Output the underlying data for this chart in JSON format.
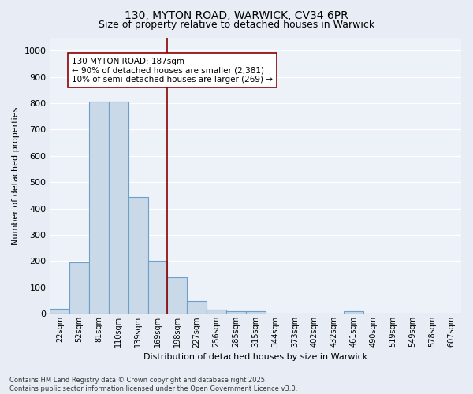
{
  "title1": "130, MYTON ROAD, WARWICK, CV34 6PR",
  "title2": "Size of property relative to detached houses in Warwick",
  "xlabel": "Distribution of detached houses by size in Warwick",
  "ylabel": "Number of detached properties",
  "categories": [
    "22sqm",
    "52sqm",
    "81sqm",
    "110sqm",
    "139sqm",
    "169sqm",
    "198sqm",
    "227sqm",
    "256sqm",
    "285sqm",
    "315sqm",
    "344sqm",
    "373sqm",
    "402sqm",
    "432sqm",
    "461sqm",
    "490sqm",
    "519sqm",
    "549sqm",
    "578sqm",
    "607sqm"
  ],
  "values": [
    20,
    195,
    805,
    805,
    445,
    200,
    140,
    50,
    15,
    10,
    10,
    0,
    0,
    0,
    0,
    10,
    0,
    0,
    0,
    0,
    0
  ],
  "bar_color": "#c9d9e8",
  "bar_edge_color": "#6ca0c8",
  "red_line_x": 5.5,
  "annotation_text": "130 MYTON ROAD: 187sqm\n← 90% of detached houses are smaller (2,381)\n10% of semi-detached houses are larger (269) →",
  "ylim": [
    0,
    1050
  ],
  "yticks": [
    0,
    100,
    200,
    300,
    400,
    500,
    600,
    700,
    800,
    900,
    1000
  ],
  "footnote1": "Contains HM Land Registry data © Crown copyright and database right 2025.",
  "footnote2": "Contains public sector information licensed under the Open Government Licence v3.0.",
  "bg_color": "#e8edf5",
  "plot_bg_color": "#edf1f8",
  "grid_color": "#ffffff",
  "title1_fontsize": 10,
  "title2_fontsize": 9,
  "bar_linewidth": 0.8,
  "annot_fontsize": 7.5,
  "ylabel_fontsize": 8,
  "xlabel_fontsize": 8,
  "tick_fontsize": 7,
  "footnote_fontsize": 6
}
